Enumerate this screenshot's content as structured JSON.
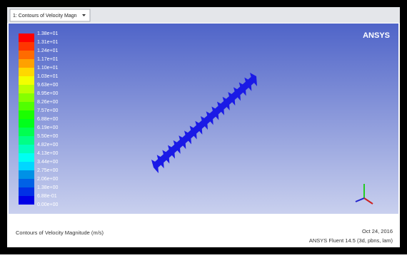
{
  "tab": {
    "title": "1: Contours of Velocity Magn"
  },
  "logo": "ANSYS",
  "legend": {
    "labels": [
      "1.38e+01",
      "1.31e+01",
      "1.24e+01",
      "1.17e+01",
      "1.10e+01",
      "1.03e+01",
      "9.63e+00",
      "8.95e+00",
      "8.26e+00",
      "7.57e+00",
      "6.88e+00",
      "6.19e+00",
      "5.50e+00",
      "4.82e+00",
      "4.13e+00",
      "3.44e+00",
      "2.75e+00",
      "2.06e+00",
      "1.38e+00",
      "6.88e-01",
      "0.00e+00"
    ]
  },
  "footer": {
    "caption": "Contours of Velocity Magnitude (m/s)",
    "date": "Oct 24, 2016",
    "version": "ANSYS Fluent 14.5 (3d, pbns, lam)"
  }
}
